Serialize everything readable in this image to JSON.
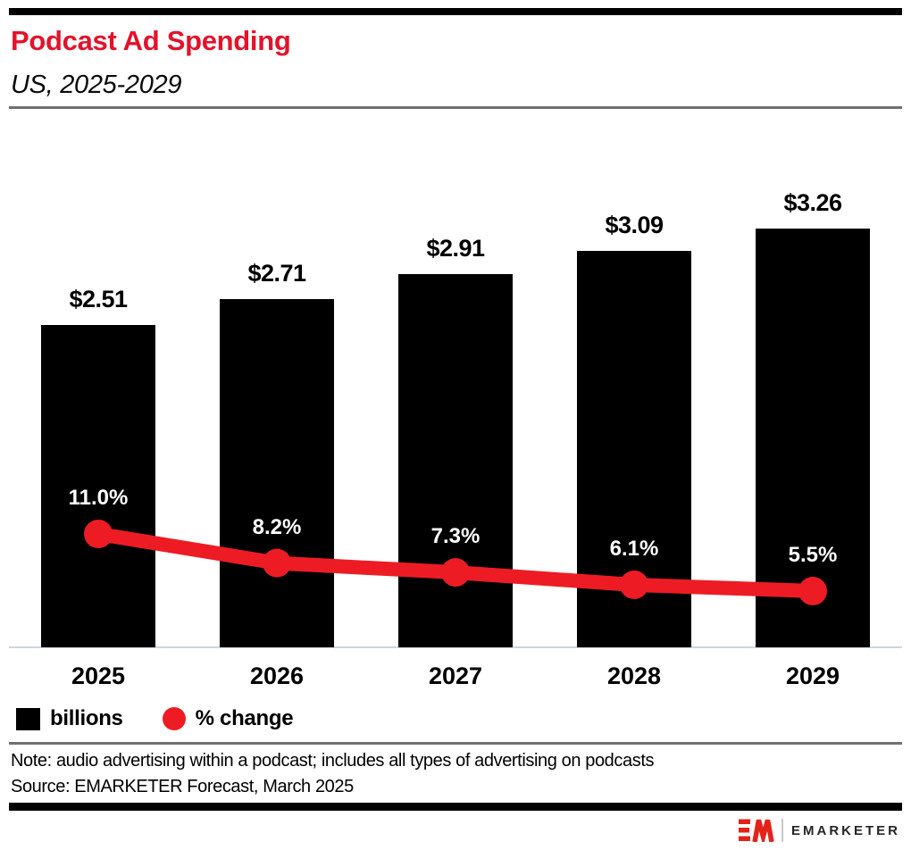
{
  "header": {
    "title": "Podcast Ad Spending",
    "subtitle": "US, 2025-2029",
    "title_color": "#e2132b"
  },
  "chart_data": {
    "type": "combo",
    "title": "Podcast Ad Spending",
    "subtitle": "US, 2025-2029",
    "categories": [
      "2025",
      "2026",
      "2027",
      "2028",
      "2029"
    ],
    "series": [
      {
        "name": "billions",
        "type": "bar",
        "color": "#000000",
        "values": [
          2.51,
          2.71,
          2.91,
          3.09,
          3.26
        ],
        "data_labels": [
          "$2.51",
          "$2.71",
          "$2.91",
          "$3.09",
          "$3.26"
        ]
      },
      {
        "name": "% change",
        "type": "line",
        "color": "#ed1c24",
        "values": [
          11.0,
          8.2,
          7.3,
          6.1,
          5.5
        ],
        "data_labels": [
          "11.0%",
          "8.2%",
          "7.3%",
          "6.1%",
          "5.5%"
        ]
      }
    ],
    "ylabel": "",
    "xlabel": "",
    "grid": false,
    "legend_position": "bottom-left"
  },
  "legend": {
    "items": [
      {
        "swatch": "black-square",
        "label": "billions"
      },
      {
        "swatch": "red-dot",
        "label": "% change",
        "color": "#ed1c24"
      }
    ]
  },
  "footer": {
    "note": "Note: audio advertising within a podcast; includes all types of advertising on podcasts",
    "source": "Source: EMARKETER Forecast, March 2025"
  },
  "brand": {
    "name": "EMARKETER",
    "logo_color": "#e2231a"
  }
}
